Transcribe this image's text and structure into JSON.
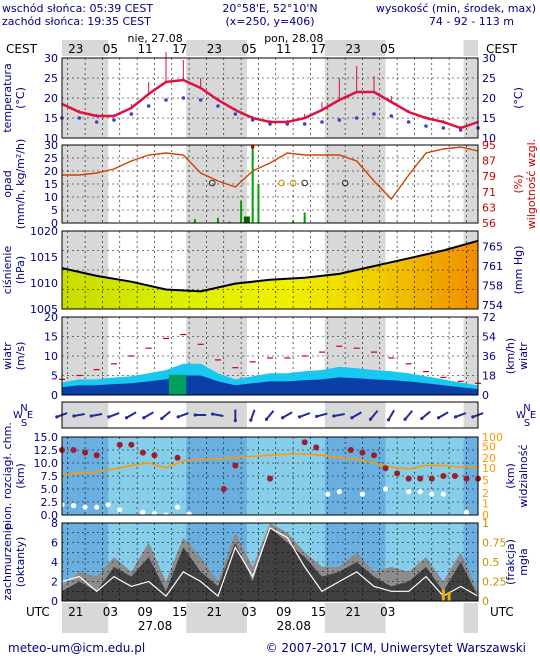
{
  "header": {
    "sunrise": "wschód słońca: 05:39 CEST",
    "sunset": "zachód słońca: 19:35 CEST",
    "coord_line1": "20°58'E, 52°10'N",
    "coord_line2": "(x=250,  y=406)",
    "elevation_title": "wysokość (min, środek, max)",
    "elevation_values": "74 - 92 - 113 m"
  },
  "time_axis": {
    "tz_top": "CEST",
    "tz_bottom": "UTC",
    "hours_top": [
      "23",
      "05",
      "11",
      "17",
      "23",
      "05",
      "11",
      "17",
      "23",
      "05"
    ],
    "hours_bottom": [
      "21",
      "03",
      "09",
      "15",
      "21",
      "03",
      "09",
      "15",
      "21",
      "03"
    ],
    "dates_top": [
      "nie, 27.08",
      "pon, 28.08"
    ],
    "dates_bottom": [
      "27.08",
      "28.08"
    ]
  },
  "footer": {
    "email": "meteo-um@icm.edu.pl",
    "copyright": "© 2007-2017 ICM, Uniwersytet Warszawski"
  },
  "colors": {
    "label_red": "#cc0000",
    "label_blue": "#000080",
    "night_shade": "#d8d8d8",
    "temp_line": "#dd1144",
    "humidity_line": "#d04000",
    "pressure_line": "#000000",
    "wind_light": "#2a7fd8",
    "wind_dark": "#0a3ea8",
    "wind_gust": "#cc0000",
    "visibility_line": "#ff9900",
    "cloud_sky": "#87ceeb",
    "cloud_dark": "#404040",
    "cloud_mid": "#8c8c8c"
  },
  "chart_data": [
    {
      "type": "line",
      "name": "temperature",
      "ylabel_left": "temperatura (°C)",
      "ylabel_right": "(°C)",
      "ylim": [
        10,
        30
      ],
      "ticks_left": [
        10,
        15,
        20,
        25,
        30
      ],
      "ticks_right": [
        10,
        15,
        20,
        25,
        30
      ],
      "grid": true,
      "x_hours": [
        0,
        3,
        6,
        9,
        12,
        15,
        18,
        21,
        24,
        27,
        30,
        33,
        36,
        39,
        42,
        45,
        48,
        51,
        54,
        57,
        60,
        63,
        66,
        69,
        72
      ],
      "temperature": [
        18.5,
        16.5,
        15.5,
        15.5,
        17.5,
        21.0,
        24.0,
        24.5,
        22.5,
        19.5,
        17.0,
        15.0,
        14.0,
        14.0,
        15.0,
        17.0,
        19.5,
        21.5,
        21.5,
        19.0,
        16.5,
        15.0,
        14.0,
        12.5,
        14.0
      ],
      "dewpoint": [
        15.0,
        15.0,
        14.0,
        14.5,
        16.0,
        18.0,
        19.5,
        20.0,
        19.5,
        18.0,
        16.0,
        14.5,
        13.5,
        13.5,
        13.5,
        14.0,
        14.5,
        15.0,
        16.0,
        15.5,
        14.0,
        13.0,
        12.5,
        12.0,
        12.5
      ],
      "temp_max_spikes": [
        18.8,
        17.0,
        16.0,
        16.0,
        18.5,
        24.0,
        31.5,
        29.5,
        25.0,
        20.0,
        17.5,
        15.5,
        14.5,
        14.5,
        16.0,
        19.0,
        25.0,
        28.0,
        25.5,
        20.5,
        17.0,
        15.5,
        14.5,
        13.0,
        14.5
      ]
    },
    {
      "type": "bar",
      "name": "precipitation",
      "ylabel_left": "opad (mm/h, kg/m²/h)",
      "ylabel_right": "wilgotność wzgl. (%)",
      "ylim": [
        0,
        30
      ],
      "ticks_left": [
        0,
        5,
        10,
        15,
        20,
        25,
        30
      ],
      "ticks_right": [
        56,
        63,
        71,
        79,
        87,
        95
      ],
      "grid": true,
      "precip_x_hours": [
        23,
        27,
        29,
        31,
        32,
        33,
        34,
        40,
        42
      ],
      "precip_values": [
        1.5,
        2.0,
        0.5,
        8.5,
        2.5,
        30.0,
        15.0,
        1.0,
        4.0
      ],
      "snow_x_hours": [
        32
      ],
      "snow_values": [
        2.5
      ],
      "humidity_x_hours": [
        0,
        3,
        6,
        9,
        12,
        15,
        18,
        21,
        24,
        27,
        30,
        33,
        36,
        39,
        42,
        45,
        48,
        51,
        54,
        57,
        60,
        63,
        66,
        69,
        72
      ],
      "humidity": [
        80,
        80,
        81,
        83,
        87,
        90,
        91,
        90,
        81,
        77,
        74,
        82,
        86,
        91,
        90,
        90,
        90,
        87,
        77,
        68,
        80,
        91,
        93,
        94,
        92
      ],
      "precip_prob_x_hours": [
        26,
        38,
        40,
        42,
        49
      ],
      "precip_prob": [
        0.25,
        0.25,
        0.25,
        0.25,
        0.25
      ]
    },
    {
      "type": "area",
      "name": "pressure",
      "ylabel_left": "ciśnienie (hPa)",
      "ylabel_right": "(mm Hg)",
      "ylim": [
        1005,
        1025
      ],
      "ticks_left": [
        1005,
        1010,
        1015,
        1020
      ],
      "ticks_right": [
        754,
        758,
        761,
        765
      ],
      "grid": true,
      "x_hours": [
        0,
        6,
        12,
        18,
        24,
        30,
        36,
        42,
        48,
        54,
        60,
        66,
        72
      ],
      "pressure": [
        1015.5,
        1013.5,
        1012.0,
        1010.0,
        1009.5,
        1011.5,
        1012.5,
        1013.0,
        1014.0,
        1016.0,
        1018.0,
        1020.0,
        1022.5
      ]
    },
    {
      "type": "area",
      "name": "wind",
      "ylabel_left": "wiatr (m/s)",
      "ylabel_right": "wiatr (km/h)",
      "ylim": [
        0,
        20
      ],
      "ticks_left": [
        0,
        5,
        10,
        15,
        20
      ],
      "ticks_right": [
        0,
        18,
        36,
        54,
        72
      ],
      "grid": true,
      "x_hours": [
        0,
        3,
        6,
        9,
        12,
        15,
        18,
        21,
        24,
        27,
        30,
        33,
        36,
        39,
        42,
        45,
        48,
        51,
        54,
        57,
        60,
        63,
        66,
        69,
        72
      ],
      "wind_mean": [
        2.0,
        2.5,
        2.5,
        2.8,
        3.0,
        3.5,
        4.0,
        5.0,
        5.0,
        3.5,
        2.5,
        3.0,
        3.5,
        3.5,
        3.8,
        4.0,
        4.5,
        4.3,
        4.0,
        3.8,
        3.5,
        3.0,
        2.5,
        2.0,
        1.5
      ],
      "gusts": [
        4.0,
        5.0,
        6.5,
        8.0,
        10.0,
        12.0,
        14.5,
        15.5,
        13.0,
        9.0,
        7.0,
        8.5,
        9.5,
        9.5,
        10.0,
        11.0,
        12.5,
        12.0,
        11.0,
        9.5,
        8.0,
        6.0,
        4.5,
        3.5,
        3.0
      ]
    },
    {
      "type": "scatter",
      "name": "wind_direction",
      "compass_labels": [
        "N",
        "W",
        "E",
        "S"
      ],
      "x_hours": [
        0,
        3,
        6,
        9,
        12,
        15,
        18,
        21,
        24,
        27,
        30,
        33,
        36,
        39,
        42,
        45,
        48,
        51,
        54,
        57,
        60,
        63,
        66,
        69,
        72
      ],
      "direction_deg": [
        250,
        260,
        260,
        250,
        240,
        240,
        230,
        250,
        270,
        280,
        180,
        200,
        220,
        240,
        250,
        255,
        260,
        240,
        220,
        210,
        220,
        230,
        240,
        250,
        250
      ]
    },
    {
      "type": "scatter",
      "name": "cloud_base_visibility",
      "ylabel_left": "pion. rozciągł. chm. (km)",
      "ylabel_right": "widzialność (km)",
      "ylim": [
        0,
        15
      ],
      "ticks_left": [
        0.0,
        2.5,
        5.0,
        7.5,
        10.0,
        12.5,
        15.0
      ],
      "ticks_right": [
        0,
        1,
        2,
        5,
        10,
        20,
        50,
        100
      ],
      "grid": true,
      "x_hours": [
        0,
        3,
        6,
        9,
        12,
        15,
        18,
        21,
        24,
        27,
        30,
        33,
        36,
        39,
        42,
        45,
        48,
        51,
        54,
        57,
        60,
        63,
        66,
        69,
        72
      ],
      "visibility_km": [
        3.5,
        4.0,
        4.5,
        6.0,
        8.0,
        10.0,
        6.5,
        12.0,
        14.0,
        15.0,
        16.0,
        18.0,
        20.0,
        22.0,
        22.0,
        20.0,
        16.0,
        14.0,
        10.0,
        7.0,
        6.0,
        8.0,
        8.0,
        7.0,
        7.0
      ],
      "cloud_top_x_hours": [
        0,
        2,
        4,
        6,
        10,
        12,
        14,
        16,
        20,
        28,
        30,
        36,
        42,
        44,
        50,
        52,
        54,
        56,
        58,
        60,
        62,
        64,
        66,
        68,
        70,
        72
      ],
      "cloud_top_km": [
        12.5,
        12.5,
        12.0,
        11.5,
        13.5,
        13.5,
        12.0,
        11.5,
        11.0,
        5.0,
        9.5,
        7.0,
        14.0,
        13.0,
        12.5,
        12.0,
        11.5,
        9.0,
        8.0,
        7.0,
        7.0,
        7.0,
        7.5,
        7.5,
        7.0,
        7.0
      ],
      "cloud_base_x_hours": [
        0,
        2,
        4,
        6,
        8,
        10,
        14,
        16,
        18,
        20,
        22,
        46,
        48,
        52,
        56,
        60,
        62,
        64,
        66,
        70
      ],
      "cloud_base_km": [
        2.0,
        1.8,
        1.5,
        1.5,
        2.0,
        1.0,
        0.5,
        0.3,
        0.0,
        1.5,
        0.2,
        4.0,
        4.5,
        4.0,
        5.0,
        4.5,
        4.5,
        4.0,
        4.0,
        0.5
      ]
    },
    {
      "type": "area",
      "name": "cloudiness_fog",
      "ylabel_left": "zachmurzenie (oktanty)",
      "ylabel_right": "mgła (frakcja)",
      "ylim": [
        0,
        8
      ],
      "ticks_left": [
        0,
        2,
        4,
        6,
        8
      ],
      "ticks_right": [
        "0",
        "0.25",
        "0.5",
        "0.75",
        "1"
      ],
      "grid": true,
      "x_hours": [
        0,
        3,
        6,
        9,
        12,
        15,
        18,
        21,
        24,
        27,
        30,
        33,
        36,
        39,
        42,
        45,
        48,
        51,
        54,
        57,
        60,
        63,
        66,
        69,
        72
      ],
      "low_clouds": [
        1.0,
        2.0,
        1.0,
        3.5,
        2.5,
        4.5,
        1.0,
        5.5,
        3.0,
        1.5,
        6.0,
        2.0,
        7.5,
        6.0,
        4.5,
        2.5,
        3.0,
        4.0,
        2.5,
        1.5,
        2.0,
        3.5,
        1.0,
        4.0,
        0.5
      ],
      "mid_clouds": [
        1.5,
        3.0,
        2.5,
        4.5,
        3.0,
        6.0,
        2.0,
        6.5,
        4.5,
        2.0,
        7.0,
        3.5,
        8.0,
        7.0,
        5.0,
        3.5,
        3.5,
        5.0,
        3.0,
        3.5,
        3.0,
        4.5,
        2.0,
        5.0,
        1.0
      ],
      "total_clouds_line": [
        2.0,
        2.5,
        1.0,
        2.5,
        1.5,
        2.0,
        0.5,
        3.0,
        2.0,
        0.5,
        5.5,
        2.5,
        7.5,
        6.5,
        3.5,
        1.0,
        2.0,
        3.0,
        1.5,
        1.0,
        1.0,
        2.5,
        0.5,
        1.5,
        0.5
      ],
      "fog_x_hours": [
        66,
        67
      ],
      "fog_fraction": [
        0.15,
        0.12
      ]
    }
  ]
}
